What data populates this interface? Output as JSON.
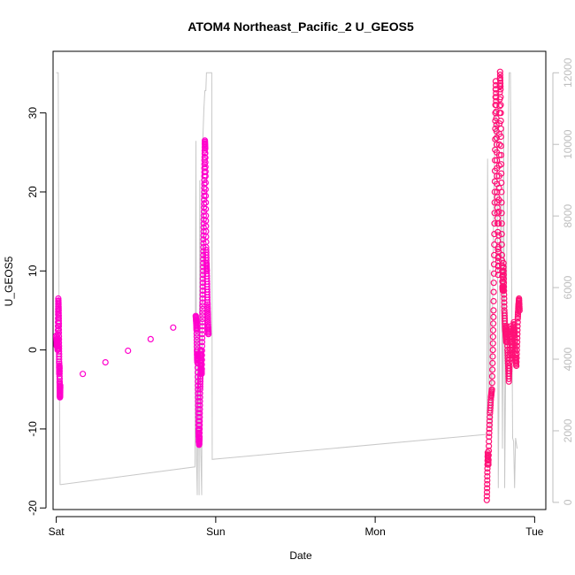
{
  "chart_data": {
    "type": "scatter",
    "title": "ATOM4 Northeast_Pacific_2 U_GEOS5",
    "xlabel": "Date",
    "ylabel": "U_GEOS5",
    "x_ticks": [
      {
        "label": "Sat",
        "value": 0
      },
      {
        "label": "Sun",
        "value": 1
      },
      {
        "label": "Mon",
        "value": 2
      },
      {
        "label": "Tue",
        "value": 3
      }
    ],
    "xlim": [
      -0.02,
      3.07
    ],
    "ylim": [
      -20.2,
      37.8
    ],
    "y_ticks": [
      -20,
      -10,
      0,
      10,
      20,
      30
    ],
    "y2lim": [
      -200,
      12600
    ],
    "y2_ticks": [
      0,
      2000,
      4000,
      6000,
      8000,
      10000,
      12000
    ],
    "series": [
      {
        "color": "#ff00cc",
        "marker": "open-circle",
        "points": [
          [
            0.0,
            1.8
          ],
          [
            0.003,
            0.5
          ],
          [
            0.006,
            1.2
          ],
          [
            0.009,
            0.0
          ],
          [
            0.01,
            1.5
          ],
          [
            0.012,
            4.5
          ],
          [
            0.013,
            6.5
          ],
          [
            0.015,
            5.0
          ],
          [
            0.016,
            3.0
          ],
          [
            0.017,
            0.5
          ],
          [
            0.018,
            -1.5
          ],
          [
            0.019,
            -3.0
          ],
          [
            0.02,
            -2.0
          ],
          [
            0.021,
            -4.0
          ],
          [
            0.022,
            -5.0
          ],
          [
            0.023,
            -6.0
          ],
          [
            0.024,
            -5.5
          ],
          [
            0.025,
            -4.5
          ],
          [
            0.875,
            4.3
          ],
          [
            0.878,
            3.5
          ],
          [
            0.88,
            2.5
          ],
          [
            0.882,
            0.0
          ],
          [
            0.884,
            -1.5
          ],
          [
            0.886,
            -0.5
          ],
          [
            0.888,
            -4.0
          ],
          [
            0.89,
            -7.0
          ],
          [
            0.892,
            -10.0
          ],
          [
            0.894,
            -11.5
          ],
          [
            0.896,
            -12.0
          ],
          [
            0.898,
            -11.0
          ],
          [
            0.9,
            -8.0
          ],
          [
            0.902,
            -5.0
          ],
          [
            0.904,
            -3.0
          ],
          [
            0.906,
            0.0
          ],
          [
            0.908,
            -1.5
          ],
          [
            0.91,
            -2.5
          ],
          [
            0.912,
            -3.0
          ],
          [
            0.914,
            0.5
          ],
          [
            0.916,
            3.5
          ],
          [
            0.918,
            6.0
          ],
          [
            0.92,
            9.0
          ],
          [
            0.922,
            12.0
          ],
          [
            0.924,
            15.0
          ],
          [
            0.926,
            18.0
          ],
          [
            0.928,
            21.0
          ],
          [
            0.93,
            24.0
          ],
          [
            0.932,
            26.5
          ],
          [
            0.934,
            25.5
          ],
          [
            0.936,
            22.0
          ],
          [
            0.938,
            17.0
          ],
          [
            0.94,
            13.0
          ],
          [
            0.942,
            11.0
          ],
          [
            0.944,
            10.0
          ],
          [
            0.946,
            8.0
          ],
          [
            0.948,
            6.0
          ],
          [
            0.95,
            4.5
          ],
          [
            0.952,
            3.0
          ],
          [
            0.954,
            2.0
          ]
        ]
      },
      {
        "color": "#ff1177",
        "marker": "open-circle",
        "points": [
          [
            2.7,
            -19.0
          ],
          [
            2.703,
            -16.0
          ],
          [
            2.706,
            -13.0
          ],
          [
            2.71,
            -14.5
          ],
          [
            2.714,
            -11.0
          ],
          [
            2.72,
            -8.0
          ],
          [
            2.726,
            -6.0
          ],
          [
            2.732,
            -5.0
          ],
          [
            2.738,
            0.0
          ],
          [
            2.742,
            5.0
          ],
          [
            2.746,
            12.0
          ],
          [
            2.75,
            20.0
          ],
          [
            2.753,
            28.0
          ],
          [
            2.756,
            34.0
          ],
          [
            2.759,
            31.0
          ],
          [
            2.762,
            26.0
          ],
          [
            2.765,
            20.0
          ],
          [
            2.768,
            16.0
          ],
          [
            2.771,
            9.5
          ],
          [
            2.774,
            13.0
          ],
          [
            2.777,
            22.0
          ],
          [
            2.78,
            30.0
          ],
          [
            2.783,
            35.2
          ],
          [
            2.786,
            33.0
          ],
          [
            2.789,
            27.0
          ],
          [
            2.792,
            20.0
          ],
          [
            2.795,
            12.0
          ],
          [
            2.798,
            8.0
          ],
          [
            2.801,
            7.5
          ],
          [
            2.804,
            11.0
          ],
          [
            2.807,
            8.0
          ],
          [
            2.81,
            5.0
          ],
          [
            2.814,
            3.0
          ],
          [
            2.818,
            2.0
          ],
          [
            2.822,
            1.0
          ],
          [
            2.826,
            3.0
          ],
          [
            2.83,
            0.0
          ],
          [
            2.834,
            -2.0
          ],
          [
            2.838,
            -4.0
          ],
          [
            2.842,
            -2.0
          ],
          [
            2.846,
            0.5
          ],
          [
            2.85,
            3.0
          ],
          [
            2.855,
            1.0
          ],
          [
            2.86,
            -1.0
          ],
          [
            2.865,
            2.0
          ],
          [
            2.87,
            3.5
          ],
          [
            2.875,
            1.5
          ],
          [
            2.88,
            -1.0
          ],
          [
            2.885,
            -2.0
          ],
          [
            2.89,
            1.0
          ],
          [
            2.894,
            4.0
          ],
          [
            2.898,
            5.5
          ],
          [
            2.902,
            6.5
          ],
          [
            2.905,
            5.0
          ]
        ]
      },
      {
        "color": "#c8c8c8",
        "marker": "line",
        "axis": "right",
        "points": [
          [
            0.0,
            12000
          ],
          [
            0.012,
            12000
          ],
          [
            0.018,
            4800
          ],
          [
            0.024,
            500
          ],
          [
            0.03,
            500
          ],
          [
            0.87,
            990
          ],
          [
            0.876,
            10100
          ],
          [
            0.88,
            1200
          ],
          [
            0.884,
            200
          ],
          [
            0.89,
            5000
          ],
          [
            0.896,
            200
          ],
          [
            0.9,
            9000
          ],
          [
            0.906,
            1500
          ],
          [
            0.912,
            200
          ],
          [
            0.918,
            10000
          ],
          [
            0.926,
            11000
          ],
          [
            0.932,
            11500
          ],
          [
            0.938,
            11500
          ],
          [
            0.942,
            12000
          ],
          [
            0.948,
            12000
          ],
          [
            0.952,
            12000
          ],
          [
            0.958,
            12000
          ],
          [
            0.962,
            12000
          ],
          [
            0.97,
            12000
          ],
          [
            0.975,
            12000
          ],
          [
            0.978,
            1200
          ],
          [
            2.7,
            1900
          ],
          [
            2.705,
            9600
          ],
          [
            2.712,
            3000
          ],
          [
            2.72,
            6500
          ],
          [
            2.728,
            2000
          ],
          [
            2.735,
            5000
          ],
          [
            2.742,
            8000
          ],
          [
            2.75,
            10000
          ],
          [
            2.758,
            11000
          ],
          [
            2.765,
            9000
          ],
          [
            2.772,
            400
          ],
          [
            2.78,
            5000
          ],
          [
            2.79,
            8500
          ],
          [
            2.798,
            1500
          ],
          [
            2.806,
            10500
          ],
          [
            2.812,
            400
          ],
          [
            2.82,
            4500
          ],
          [
            2.83,
            9000
          ],
          [
            2.84,
            12000
          ],
          [
            2.848,
            12000
          ],
          [
            2.855,
            7000
          ],
          [
            2.862,
            1800
          ],
          [
            2.868,
            1700
          ],
          [
            2.874,
            400
          ],
          [
            2.88,
            1800
          ],
          [
            2.89,
            1500
          ]
        ]
      }
    ]
  }
}
